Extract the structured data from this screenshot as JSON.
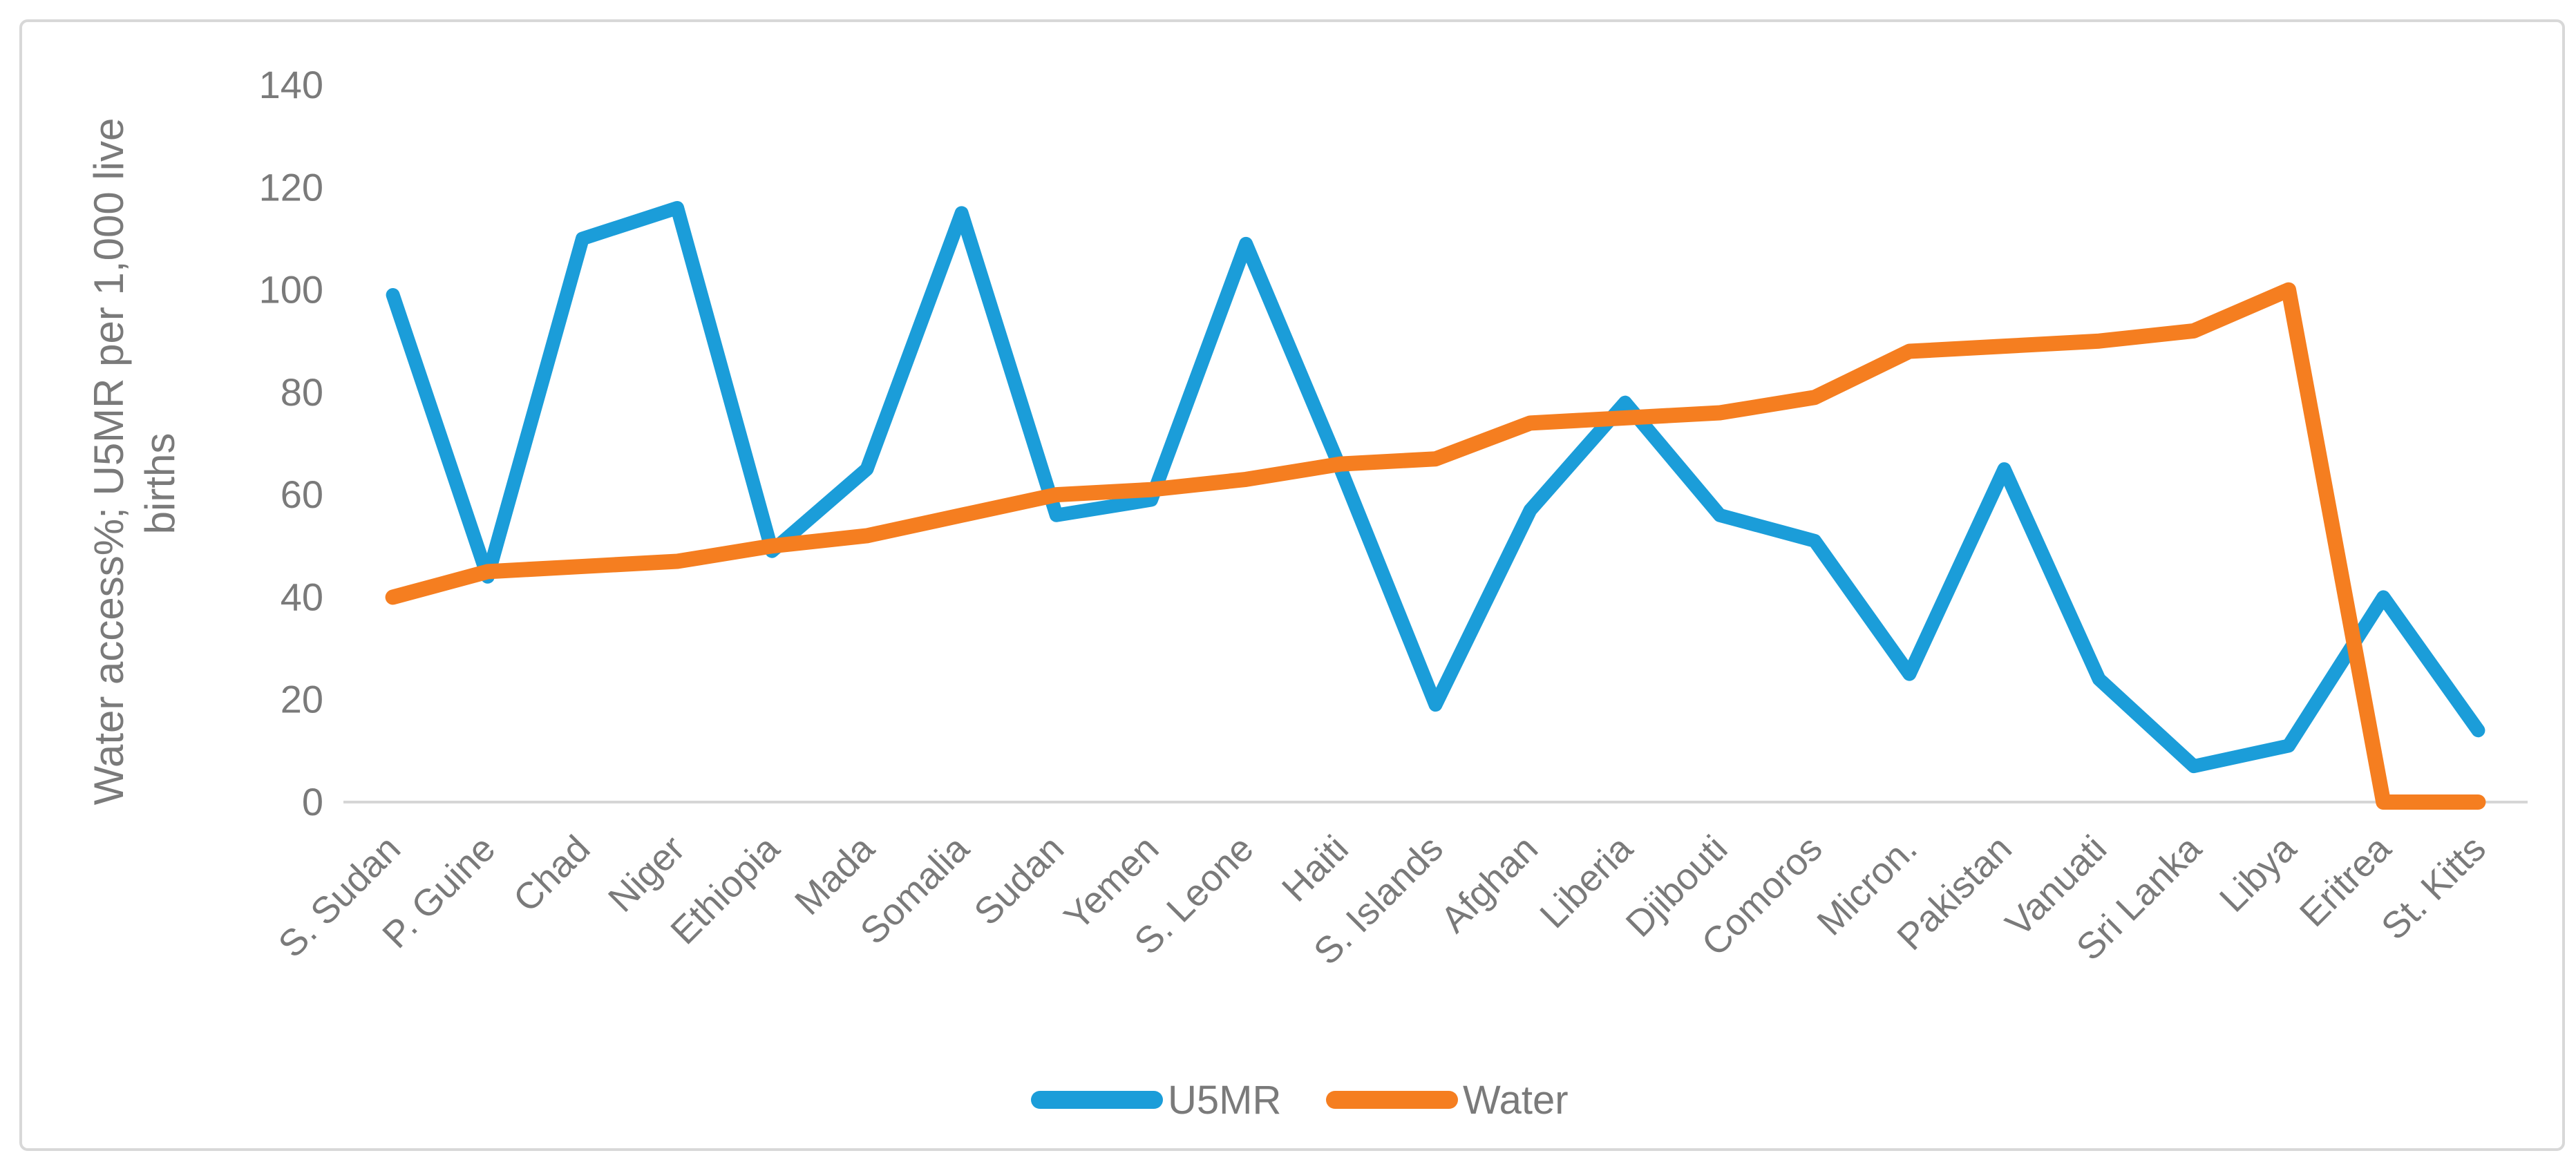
{
  "chart_data": {
    "type": "line",
    "title": "",
    "categories": [
      "S. Sudan",
      "P. Guine",
      "Chad",
      "Niger",
      "Ethiopia",
      "Mada",
      "Somalia",
      "Sudan",
      "Yemen",
      "S. Leone",
      "Haiti",
      "S. Islands",
      "Afghan",
      "Liberia",
      "Djibouti",
      "Comoros",
      "Micron.",
      "Pakistan",
      "Vanuati",
      "Sri Lanka",
      "Libya",
      "Eritrea",
      "St. Kitts"
    ],
    "series": [
      {
        "name": "U5MR",
        "color": "#1B9DD9",
        "values": [
          99,
          44,
          110,
          116,
          49,
          65,
          115,
          56,
          59,
          109,
          65,
          19,
          57,
          78,
          56,
          51,
          25,
          65,
          24,
          7,
          11,
          40,
          14
        ]
      },
      {
        "name": "Water",
        "color": "#F57E20",
        "values": [
          40,
          45,
          46,
          47,
          50,
          52,
          56,
          60,
          61,
          63,
          66,
          67,
          74,
          75,
          76,
          79,
          88,
          89,
          90,
          92,
          100,
          0,
          0
        ]
      }
    ],
    "xlabel": "",
    "ylabel": "Water access%; U5MR per 1,000 live births",
    "ylabel_lines": [
      "Water access%; U5MR per 1,000 live",
      "births"
    ],
    "yticks": [
      0,
      20,
      40,
      60,
      80,
      100,
      120,
      140
    ],
    "ylim": [
      0,
      140
    ],
    "grid": false,
    "legend_position": "bottom-center",
    "legend_labels": [
      "U5MR",
      "Water"
    ],
    "colors": {
      "axis_text": "#7A7A7A",
      "axis_line": "#D6D6D6",
      "frame_border": "#D8D8D8",
      "background": "#FFFFFF"
    }
  }
}
